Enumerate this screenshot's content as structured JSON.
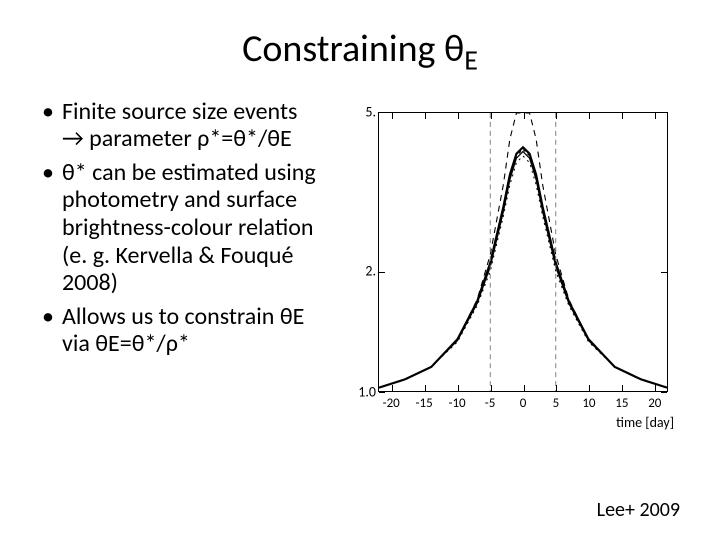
{
  "title": {
    "main": "Constraining θ",
    "sub": "E"
  },
  "bullets": [
    "Finite source size events → parameter ρ*=θ*/θE",
    "θ* can be estimated using photometry and surface brightness-colour relation (e. g. Kervella & Fouqué 2008)",
    "Allows us to constrain θE via θE=θ*/ρ*"
  ],
  "citation": "Lee+ 2009",
  "chart": {
    "type": "line",
    "xlabel": "time [day]",
    "xlim": [
      -22,
      22
    ],
    "ylim": [
      1.0,
      5.0
    ],
    "xtick_step": 5,
    "xtick_labels": [
      "-20",
      "-15",
      "-10",
      "-5",
      "0",
      "5",
      "10",
      "15",
      "20"
    ],
    "xtick_positions": [
      -20,
      -15,
      -10,
      -5,
      0,
      5,
      10,
      15,
      20
    ],
    "ytick_labels": [
      "1.0",
      "2.",
      "5."
    ],
    "ytick_positions": [
      1.0,
      2.0,
      5.0
    ],
    "background_color": "#ffffff",
    "axis_color": "#000000",
    "series": [
      {
        "name": "pointsource",
        "dash": "6,5",
        "width": 1.1,
        "color": "#000000",
        "y_at": {
          "-22": 1.02,
          "-18": 1.07,
          "-14": 1.15,
          "-10": 1.35,
          "-7": 1.7,
          "-5": 2.2,
          "-3": 3.3,
          "-2": 4.3,
          "-1": 6.5,
          "0": 12,
          "1": 6.5,
          "2": 4.3,
          "3": 3.3,
          "5": 2.2,
          "7": 1.7,
          "10": 1.35,
          "14": 1.15,
          "18": 1.07,
          "22": 1.02
        }
      },
      {
        "name": "finite-a",
        "dash": "none",
        "width": 2.2,
        "color": "#000000",
        "y_at": {
          "-22": 1.02,
          "-18": 1.07,
          "-14": 1.15,
          "-10": 1.35,
          "-7": 1.68,
          "-5": 2.1,
          "-3": 2.9,
          "-2": 3.5,
          "-1": 3.95,
          "0": 4.1,
          "1": 3.95,
          "2": 3.5,
          "3": 2.9,
          "5": 2.1,
          "7": 1.68,
          "10": 1.35,
          "14": 1.15,
          "18": 1.07,
          "22": 1.02
        }
      },
      {
        "name": "finite-b",
        "dash": "none",
        "width": 1.2,
        "color": "#000000",
        "y_at": {
          "-22": 1.02,
          "-18": 1.07,
          "-14": 1.15,
          "-10": 1.34,
          "-7": 1.66,
          "-5": 2.05,
          "-3": 2.82,
          "-2": 3.4,
          "-1": 3.85,
          "0": 4.0,
          "1": 3.85,
          "2": 3.4,
          "3": 2.82,
          "5": 2.05,
          "7": 1.66,
          "10": 1.34,
          "14": 1.15,
          "18": 1.07,
          "22": 1.02
        }
      },
      {
        "name": "finite-c",
        "dash": "3,3",
        "width": 1.0,
        "color": "#000000",
        "y_at": {
          "-22": 1.02,
          "-18": 1.07,
          "-14": 1.15,
          "-10": 1.34,
          "-7": 1.66,
          "-5": 2.05,
          "-3": 2.85,
          "-2": 3.45,
          "-1": 3.9,
          "0": 4.05,
          "1": 3.9,
          "2": 3.45,
          "3": 2.85,
          "5": 2.05,
          "7": 1.66,
          "10": 1.34,
          "14": 1.15,
          "18": 1.07,
          "22": 1.02
        }
      },
      {
        "name": "finite-d",
        "dash": "2,4",
        "width": 1.0,
        "color": "#000000",
        "y_at": {
          "-22": 1.02,
          "-18": 1.07,
          "-14": 1.15,
          "-10": 1.33,
          "-7": 1.64,
          "-5": 2.0,
          "-3": 2.75,
          "-2": 3.3,
          "-1": 3.75,
          "0": 3.9,
          "1": 3.75,
          "2": 3.3,
          "3": 2.75,
          "5": 2.0,
          "7": 1.64,
          "10": 1.33,
          "14": 1.15,
          "18": 1.07,
          "22": 1.02
        }
      }
    ],
    "vlines": {
      "x": [
        -5,
        5
      ],
      "dash": "5,4",
      "color": "#808080",
      "width": 1.0
    }
  }
}
